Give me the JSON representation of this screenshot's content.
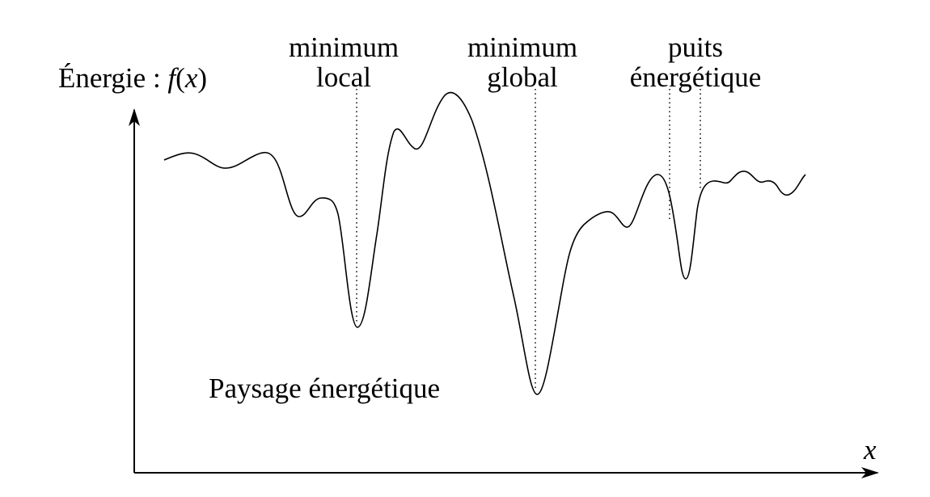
{
  "axes": {
    "y_label_text": "Énergie :",
    "y_label_func": "f",
    "y_label_open": "(",
    "y_label_var": "x",
    "y_label_close": ")",
    "x_label": "x"
  },
  "annotations": {
    "local_min": [
      "minimum",
      "local"
    ],
    "global_min": [
      "minimum",
      "global"
    ],
    "energy_well": [
      "puits",
      "énergétique"
    ]
  },
  "caption": "Paysage énergétique",
  "colors": {
    "stroke": "#000000",
    "background": "#ffffff"
  }
}
